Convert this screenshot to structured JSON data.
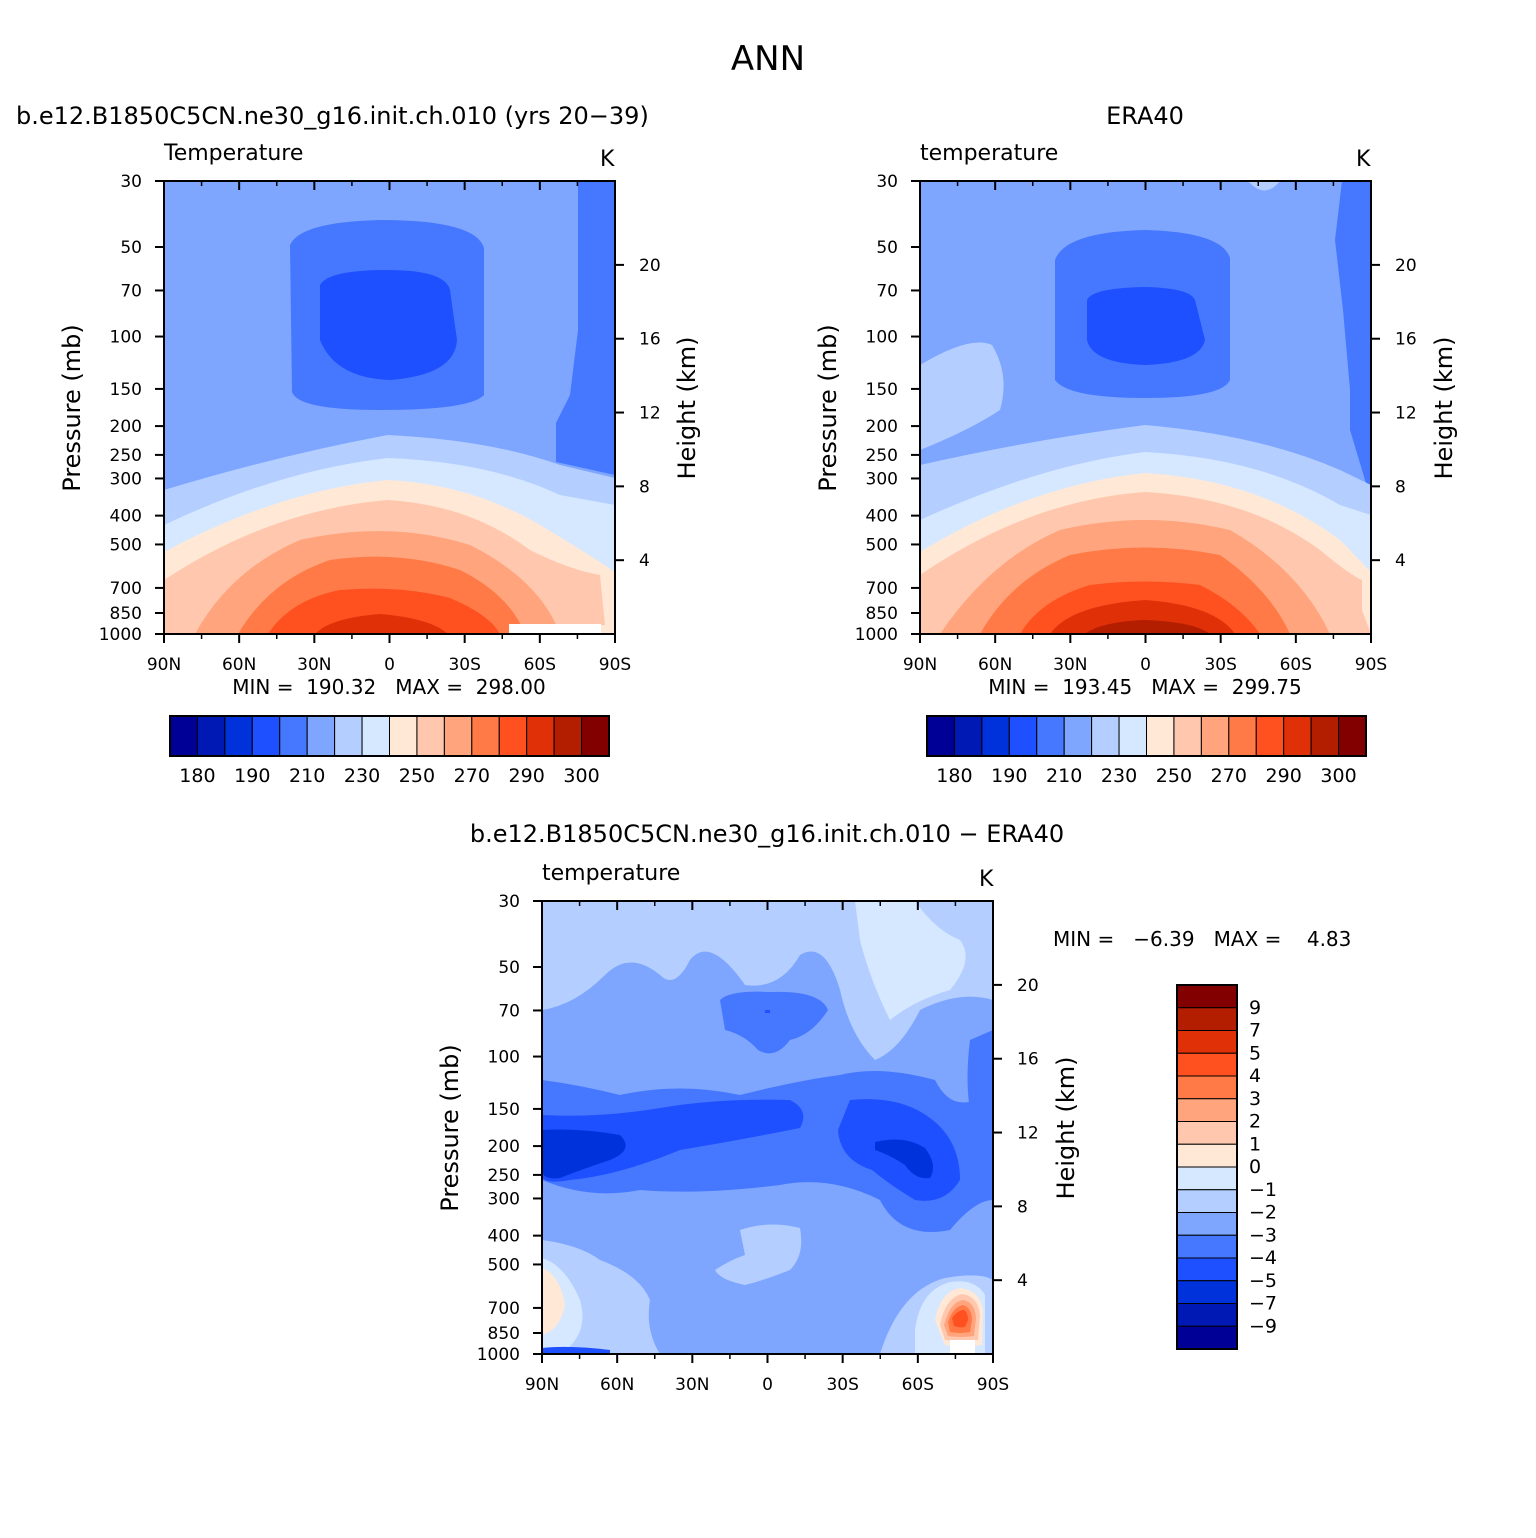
{
  "figure": {
    "title": "ANN"
  },
  "panels": [
    {
      "title": "b.e12.B1850C5CN.ne30_g16.init.ch.010 (yrs 20−39)",
      "variable": "Temperature",
      "units": "K",
      "ylabel": "Pressure (mb)",
      "ylabel_right": "Height (km)",
      "stats": "MIN =  190.32   MAX =  298.00"
    },
    {
      "title": "ERA40",
      "variable": "temperature",
      "units": "K",
      "ylabel": "Pressure (mb)",
      "ylabel_right": "Height (km)",
      "stats": "MIN =  193.45   MAX =  299.75"
    },
    {
      "title": "b.e12.B1850C5CN.ne30_g16.init.ch.010 − ERA40",
      "variable": "temperature",
      "units": "K",
      "ylabel": "Pressure (mb)",
      "ylabel_right": "Height (km)",
      "stats": "MIN =   −6.39   MAX =    4.83"
    }
  ],
  "chart_data": [
    {
      "type": "heatmap",
      "title": "b.e12.B1850C5CN.ne30_g16.init.ch.010 (yrs 20−39)",
      "subtitle": "Temperature",
      "units": "K",
      "xlabel": "",
      "ylabel": "Pressure (mb)",
      "ylabel_right": "Height (km)",
      "x_ticks": [
        "90N",
        "60N",
        "30N",
        "0",
        "30S",
        "60S",
        "90S"
      ],
      "y_ticks": [
        30,
        50,
        70,
        100,
        150,
        200,
        250,
        300,
        400,
        500,
        700,
        850,
        1000
      ],
      "y_ticks_right": [
        20,
        16,
        12,
        8,
        4
      ],
      "y_scale": "log",
      "ylim": [
        1000,
        30
      ],
      "xlim": [
        90,
        -90
      ],
      "min": 190.32,
      "max": 298.0,
      "colorbar_labels": [
        "180",
        "190",
        "210",
        "230",
        "250",
        "270",
        "290",
        "300"
      ],
      "colorbar_colors": [
        "#000096",
        "#0019b4",
        "#0032dc",
        "#1e50ff",
        "#4678ff",
        "#7ea6ff",
        "#b4ceff",
        "#d6e8ff",
        "#ffe8d6",
        "#ffc8ae",
        "#ffa47c",
        "#ff7a46",
        "#ff5020",
        "#e03008",
        "#b41e00",
        "#820000"
      ],
      "contour_levels": [
        180,
        185,
        190,
        200,
        210,
        220,
        230,
        240,
        250,
        260,
        270,
        280,
        290,
        295,
        300
      ],
      "sample_values": {
        "x": [
          90,
          60,
          30,
          0,
          -30,
          -60,
          -90
        ],
        "p": [
          30,
          100,
          200,
          500,
          850,
          1000
        ],
        "t": [
          [
            225,
            225,
            225,
            225,
            225,
            225,
            215
          ],
          [
            225,
            212,
            200,
            198,
            200,
            215,
            218
          ],
          [
            225,
            225,
            222,
            218,
            222,
            220,
            212
          ],
          [
            245,
            250,
            258,
            262,
            258,
            248,
            240
          ],
          [
            262,
            272,
            285,
            290,
            285,
            268,
            255
          ],
          [
            265,
            276,
            289,
            296,
            290,
            272,
            258
          ]
        ]
      }
    },
    {
      "type": "heatmap",
      "title": "ERA40",
      "subtitle": "temperature",
      "units": "K",
      "xlabel": "",
      "ylabel": "Pressure (mb)",
      "ylabel_right": "Height (km)",
      "x_ticks": [
        "90N",
        "60N",
        "30N",
        "0",
        "30S",
        "60S",
        "90S"
      ],
      "y_ticks": [
        30,
        50,
        70,
        100,
        150,
        200,
        250,
        300,
        400,
        500,
        700,
        850,
        1000
      ],
      "y_ticks_right": [
        20,
        16,
        12,
        8,
        4
      ],
      "y_scale": "log",
      "ylim": [
        1000,
        30
      ],
      "xlim": [
        90,
        -90
      ],
      "min": 193.45,
      "max": 299.75,
      "colorbar_labels": [
        "180",
        "190",
        "210",
        "230",
        "250",
        "270",
        "290",
        "300"
      ],
      "colorbar_colors": [
        "#000096",
        "#0019b4",
        "#0032dc",
        "#1e50ff",
        "#4678ff",
        "#7ea6ff",
        "#b4ceff",
        "#d6e8ff",
        "#ffe8d6",
        "#ffc8ae",
        "#ffa47c",
        "#ff7a46",
        "#ff5020",
        "#e03008",
        "#b41e00",
        "#820000"
      ],
      "contour_levels": [
        180,
        185,
        190,
        200,
        210,
        220,
        230,
        240,
        250,
        260,
        270,
        280,
        290,
        295,
        300
      ],
      "sample_values": {
        "x": [
          90,
          60,
          30,
          0,
          -30,
          -60,
          -90
        ],
        "p": [
          30,
          100,
          200,
          500,
          850,
          1000
        ],
        "t": [
          [
            225,
            225,
            225,
            228,
            225,
            225,
            215
          ],
          [
            230,
            215,
            203,
            201,
            203,
            220,
            220
          ],
          [
            228,
            228,
            225,
            220,
            225,
            222,
            215
          ],
          [
            250,
            255,
            262,
            265,
            262,
            252,
            245
          ],
          [
            262,
            275,
            288,
            293,
            288,
            272,
            258
          ],
          [
            265,
            278,
            292,
            298,
            292,
            275,
            260
          ]
        ]
      }
    },
    {
      "type": "heatmap",
      "title": "b.e12.B1850C5CN.ne30_g16.init.ch.010 − ERA40",
      "subtitle": "temperature",
      "units": "K",
      "xlabel": "",
      "ylabel": "Pressure (mb)",
      "ylabel_right": "Height (km)",
      "x_ticks": [
        "90N",
        "60N",
        "30N",
        "0",
        "30S",
        "60S",
        "90S"
      ],
      "y_ticks": [
        30,
        50,
        70,
        100,
        150,
        200,
        250,
        300,
        400,
        500,
        700,
        850,
        1000
      ],
      "y_ticks_right": [
        20,
        16,
        12,
        8,
        4
      ],
      "y_scale": "log",
      "ylim": [
        1000,
        30
      ],
      "xlim": [
        90,
        -90
      ],
      "min": -6.39,
      "max": 4.83,
      "colorbar_labels": [
        "9",
        "7",
        "5",
        "4",
        "3",
        "2",
        "1",
        "0",
        "−1",
        "−2",
        "−3",
        "−4",
        "−5",
        "−7",
        "−9"
      ],
      "colorbar_colors": [
        "#820000",
        "#b41e00",
        "#e03008",
        "#ff5020",
        "#ff7a46",
        "#ffa47c",
        "#ffc8ae",
        "#ffe8d6",
        "#d6e8ff",
        "#b4ceff",
        "#7ea6ff",
        "#4678ff",
        "#1e50ff",
        "#0032dc",
        "#0019b4",
        "#000096"
      ],
      "contour_levels": [
        -9,
        -7,
        -5,
        -4,
        -3,
        -2,
        -1,
        0,
        1,
        2,
        3,
        4,
        5,
        7,
        9
      ]
    }
  ]
}
